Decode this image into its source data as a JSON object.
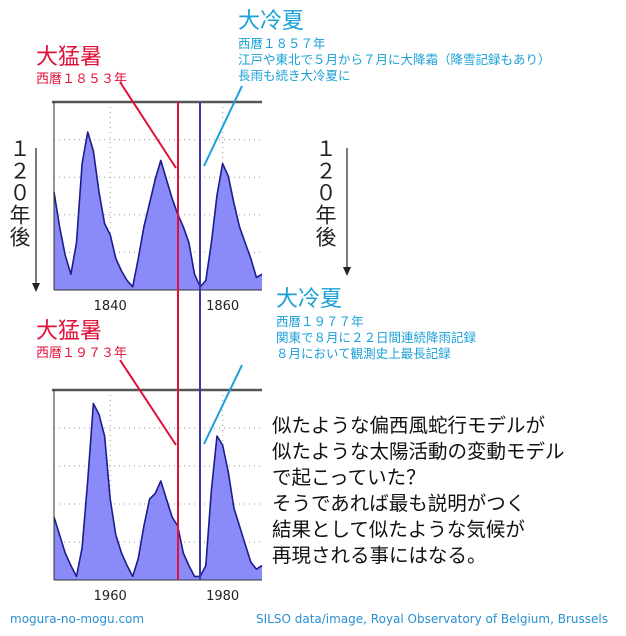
{
  "chart_data": [
    {
      "type": "area",
      "xlim": [
        1830,
        1867
      ],
      "xticks": [
        "1840",
        "1860"
      ],
      "x": [
        1830,
        1831,
        1832,
        1833,
        1834,
        1835,
        1836,
        1837,
        1838,
        1839,
        1840,
        1841,
        1842,
        1843,
        1844,
        1845,
        1846,
        1847,
        1848,
        1849,
        1850,
        1851,
        1852,
        1853,
        1854,
        1855,
        1856,
        1857,
        1858,
        1859,
        1860,
        1861,
        1862,
        1863,
        1864,
        1865,
        1866,
        1867
      ],
      "values": [
        0.62,
        0.4,
        0.22,
        0.1,
        0.3,
        0.8,
        1.0,
        0.88,
        0.62,
        0.42,
        0.35,
        0.2,
        0.12,
        0.06,
        0.02,
        0.2,
        0.4,
        0.55,
        0.7,
        0.82,
        0.7,
        0.58,
        0.48,
        0.4,
        0.3,
        0.1,
        0.02,
        0.06,
        0.3,
        0.6,
        0.8,
        0.72,
        0.55,
        0.4,
        0.3,
        0.2,
        0.08,
        0.1
      ]
    },
    {
      "type": "area",
      "xlim": [
        1950,
        1987
      ],
      "xticks": [
        "1960",
        "1980"
      ],
      "x": [
        1950,
        1951,
        1952,
        1953,
        1954,
        1955,
        1956,
        1957,
        1958,
        1959,
        1960,
        1961,
        1962,
        1963,
        1964,
        1965,
        1966,
        1967,
        1968,
        1969,
        1970,
        1971,
        1972,
        1973,
        1974,
        1975,
        1976,
        1977,
        1978,
        1979,
        1980,
        1981,
        1982,
        1983,
        1984,
        1985,
        1986,
        1987
      ],
      "values": [
        0.35,
        0.25,
        0.15,
        0.08,
        0.02,
        0.18,
        0.55,
        0.98,
        0.92,
        0.8,
        0.45,
        0.25,
        0.15,
        0.08,
        0.02,
        0.12,
        0.3,
        0.45,
        0.48,
        0.55,
        0.45,
        0.35,
        0.3,
        0.15,
        0.08,
        0.02,
        0.02,
        0.08,
        0.5,
        0.8,
        0.75,
        0.6,
        0.4,
        0.3,
        0.2,
        0.1,
        0.06,
        0.08
      ]
    }
  ],
  "colors": {
    "fill": "#8a8af8",
    "line": "#1c1c8c",
    "red_line": "#e0103a",
    "cold_line": "#3838a0",
    "blue_callout": "#1aa0d8"
  },
  "top": {
    "hot_title": "大猛暑",
    "hot_sub": "西暦１８５３年",
    "cold_title": "大冷夏",
    "cold_sub": [
      "西暦１８５７年",
      "江戸や東北で５月から７月に大降霜（降雪記録もあり）",
      "長雨も続き大冷夏に"
    ]
  },
  "bottom": {
    "hot_title": "大猛暑",
    "hot_sub": "西暦１９７３年",
    "cold_title": "大冷夏",
    "cold_sub": [
      "西暦１９７７年",
      "関東で８月に２２日間連続降雨記録",
      "８月において観測史上最長記録"
    ]
  },
  "arrows": [
    "１２０年後",
    "１２０年後"
  ],
  "comment": [
    "似たような偏西風蛇行モデルが",
    "似たような太陽活動の変動モデル",
    "で起こっていた？",
    "そうであれば最も説明がつく",
    "結果として似たような気候が",
    "再現される事にはなる。"
  ],
  "footer": {
    "left": "mogura-no-mogu.com",
    "right": "SILSO data/image, Royal Observatory of Belgium, Brussels"
  }
}
